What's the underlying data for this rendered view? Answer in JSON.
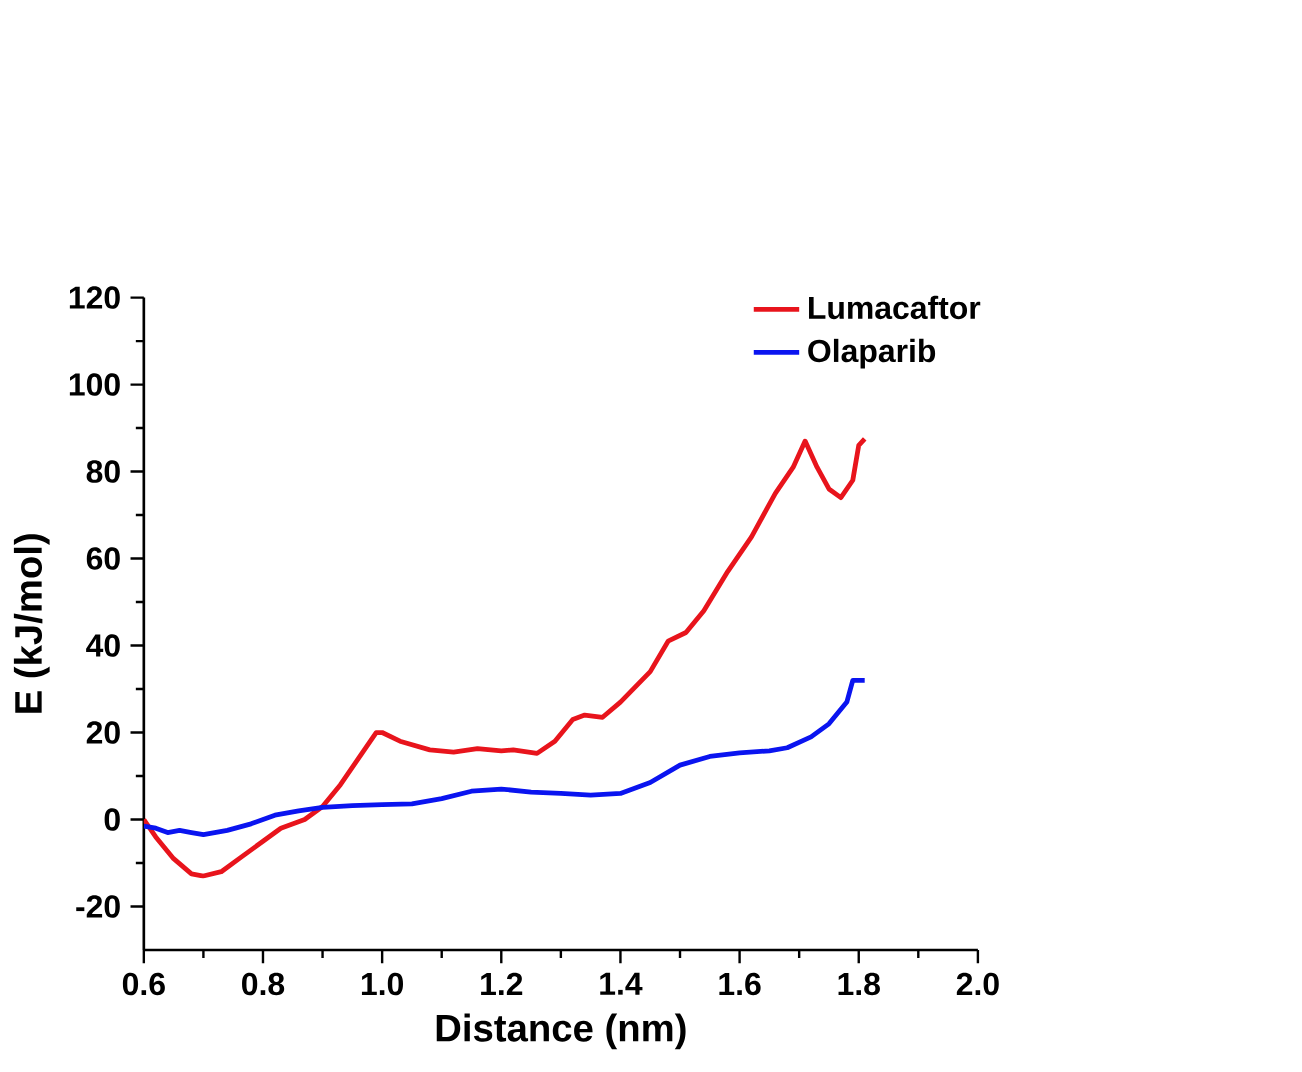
{
  "chart_data": {
    "type": "line",
    "xlabel": "Distance (nm)",
    "ylabel": "E (kJ/mol)",
    "xlim": [
      0.6,
      2.0
    ],
    "ylim": [
      -30,
      120
    ],
    "xticks": [
      {
        "value": 0.6,
        "label": "0.6"
      },
      {
        "value": 0.8,
        "label": "0.8"
      },
      {
        "value": 1.0,
        "label": "1.0"
      },
      {
        "value": 1.2,
        "label": "1.2"
      },
      {
        "value": 1.4,
        "label": "1.4"
      },
      {
        "value": 1.6,
        "label": "1.6"
      },
      {
        "value": 1.8,
        "label": "1.8"
      },
      {
        "value": 2.0,
        "label": "2.0"
      }
    ],
    "yticks": [
      -20,
      0,
      20,
      40,
      60,
      80,
      100,
      120
    ],
    "legend": "top right",
    "grid": false,
    "marker": "none",
    "line_style": "solid",
    "series": [
      {
        "name": "Lumacaftor",
        "color": "#e8141c",
        "x": [
          0.6,
          0.62,
          0.65,
          0.68,
          0.7,
          0.73,
          0.76,
          0.8,
          0.83,
          0.87,
          0.9,
          0.93,
          0.96,
          0.99,
          1.0,
          1.03,
          1.08,
          1.12,
          1.16,
          1.2,
          1.22,
          1.26,
          1.29,
          1.32,
          1.34,
          1.37,
          1.4,
          1.45,
          1.48,
          1.51,
          1.54,
          1.58,
          1.62,
          1.66,
          1.69,
          1.71,
          1.73,
          1.75,
          1.77,
          1.79,
          1.8,
          1.81
        ],
        "values": [
          0,
          -4,
          -9,
          -12.5,
          -13,
          -12,
          -9,
          -5,
          -2,
          0,
          3,
          8,
          14,
          20,
          20,
          18,
          16,
          15.5,
          16.3,
          15.8,
          16,
          15.2,
          18,
          23,
          24,
          23.5,
          27,
          34,
          41,
          43,
          48,
          57,
          65,
          75,
          81,
          87,
          81,
          76,
          74,
          78,
          86,
          87.5
        ]
      },
      {
        "name": "Olaparib",
        "color": "#0a14f0",
        "x": [
          0.6,
          0.62,
          0.64,
          0.66,
          0.68,
          0.7,
          0.74,
          0.78,
          0.82,
          0.86,
          0.9,
          0.95,
          1.0,
          1.05,
          1.1,
          1.15,
          1.2,
          1.25,
          1.3,
          1.35,
          1.4,
          1.45,
          1.5,
          1.55,
          1.6,
          1.65,
          1.68,
          1.72,
          1.75,
          1.78,
          1.79,
          1.81
        ],
        "values": [
          -1.5,
          -2,
          -3,
          -2.5,
          -3,
          -3.5,
          -2.5,
          -1,
          1,
          2,
          2.8,
          3.2,
          3.4,
          3.6,
          4.8,
          6.5,
          7,
          6.3,
          6,
          5.6,
          6,
          8.5,
          12.5,
          14.5,
          15.3,
          15.8,
          16.5,
          19,
          22,
          27,
          32,
          32
        ]
      }
    ]
  }
}
